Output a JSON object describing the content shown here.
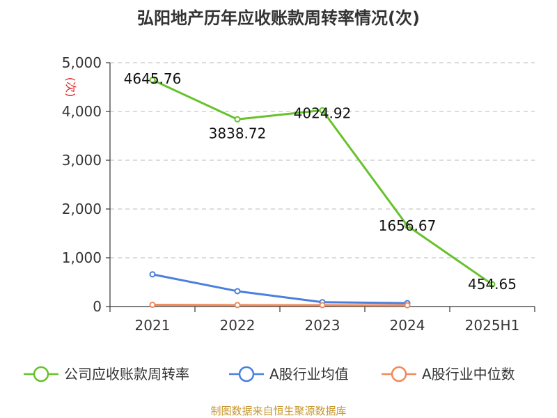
{
  "chart_data": {
    "type": "line",
    "title": "弘阳地产历年应收账款周转率情况(次)",
    "ylabel": "(次)",
    "categories": [
      "2021",
      "2022",
      "2023",
      "2024",
      "2025H1"
    ],
    "ylim": [
      0,
      5000
    ],
    "yticks": [
      0,
      1000,
      2000,
      3000,
      4000,
      5000
    ],
    "ytick_labels": [
      "0",
      "1,000",
      "2,000",
      "3,000",
      "4,000",
      "5,000"
    ],
    "grid": true,
    "legend_position": "bottom",
    "series": [
      {
        "name": "公司应收账款周转率",
        "color": "#66c22a",
        "values": [
          4645.76,
          3838.72,
          4024.92,
          1656.67,
          454.65
        ],
        "labels": [
          "4645.76",
          "3838.72",
          "4024.92",
          "1656.67",
          "454.65"
        ],
        "show_labels": true
      },
      {
        "name": "A股行业均值",
        "color": "#4a7fdc",
        "values": [
          660,
          315,
          90,
          70,
          null
        ],
        "show_labels": false
      },
      {
        "name": "A股行业中位数",
        "color": "#f08a5a",
        "values": [
          35,
          30,
          28,
          25,
          null
        ],
        "show_labels": false
      }
    ]
  },
  "footer": {
    "source": "制图数据来自恒生聚源数据库"
  }
}
